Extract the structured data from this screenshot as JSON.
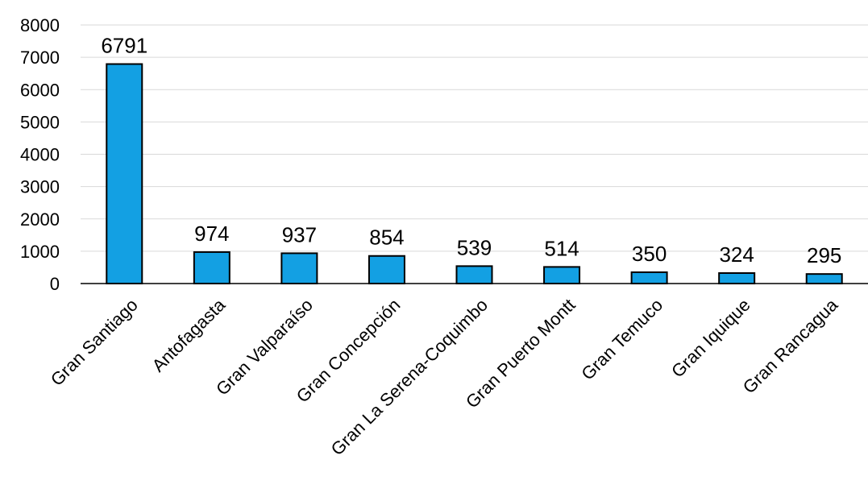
{
  "colors": {
    "bar_fill": "#13A0E3",
    "bar_stroke": "#000000",
    "grid": "#d9d9d9"
  },
  "chart_data": {
    "type": "bar",
    "title": "",
    "xlabel": "",
    "ylabel": "",
    "categories": [
      "Gran Santiago",
      "Antofagasta",
      "Gran Valparaíso",
      "Gran Concepción",
      "Gran La Serena-Coquimbo",
      "Gran Puerto Montt",
      "Gran Temuco",
      "Gran Iquique",
      "Gran Rancagua"
    ],
    "values": [
      6791,
      974,
      937,
      854,
      539,
      514,
      350,
      324,
      295
    ],
    "data_labels": [
      "6791",
      "974",
      "937",
      "854",
      "539",
      "514",
      "350",
      "324",
      "295"
    ],
    "ylim": [
      0,
      8000
    ],
    "yticks": [
      0,
      1000,
      2000,
      3000,
      4000,
      5000,
      6000,
      7000,
      8000
    ],
    "ytick_labels": [
      "0",
      "1000",
      "2000",
      "3000",
      "4000",
      "5000",
      "6000",
      "7000",
      "8000"
    ],
    "grid": true,
    "legend": "none"
  }
}
